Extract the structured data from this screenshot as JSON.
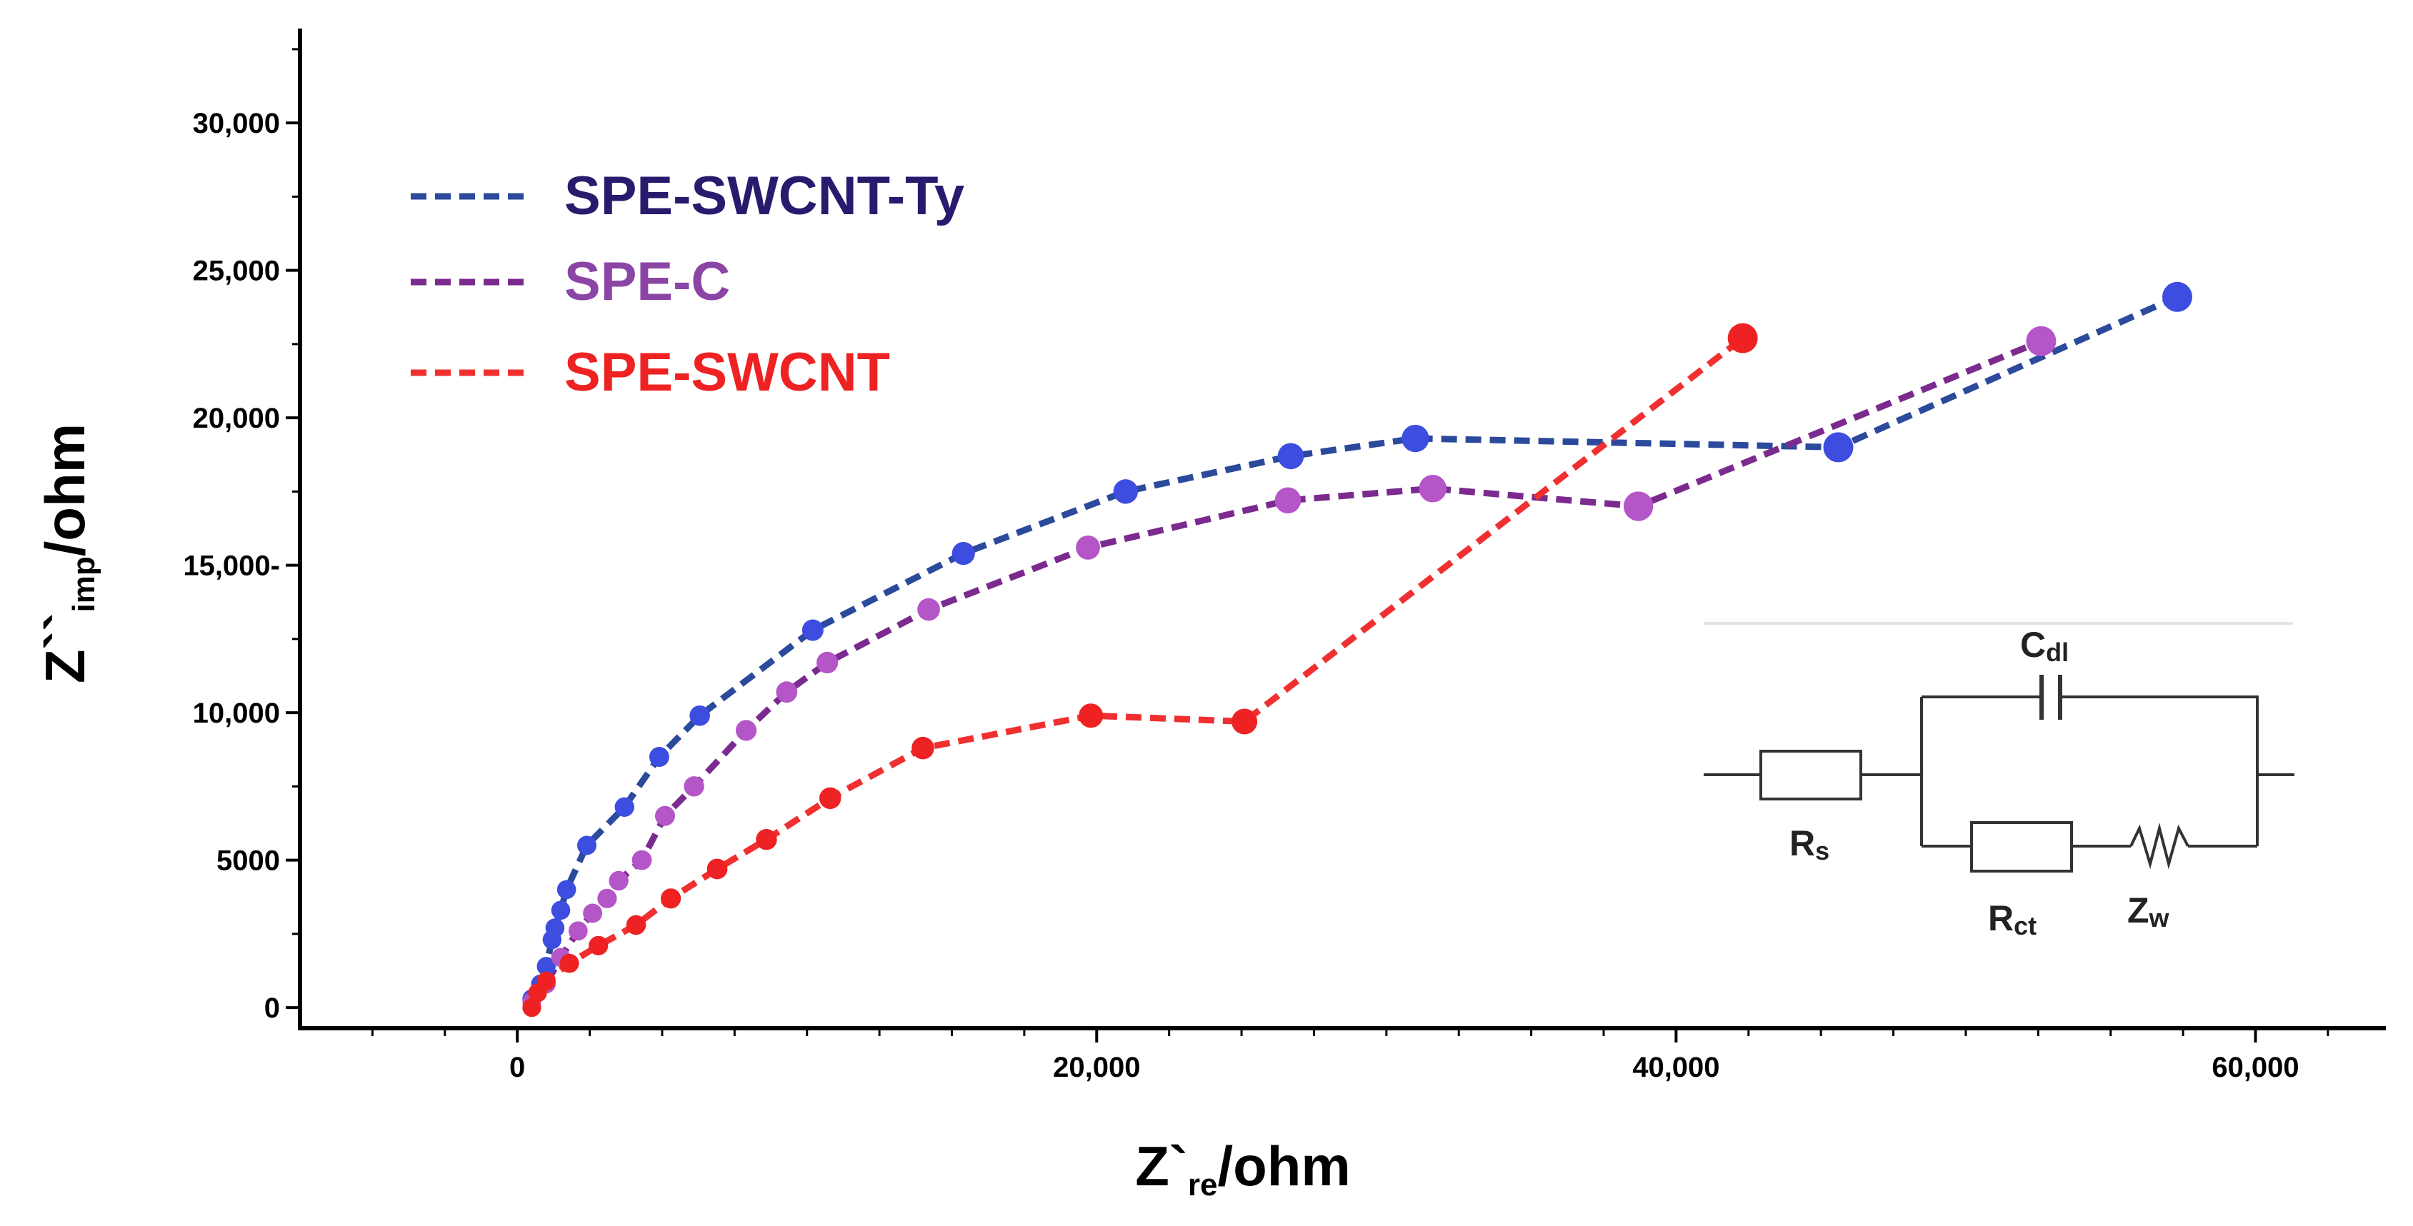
{
  "chart_data": {
    "type": "scatter",
    "title": "",
    "xlabel": {
      "main": "Z`",
      "sub": "re",
      "unit": "/ohm"
    },
    "ylabel": {
      "main": "Z``",
      "sub": "imp",
      "unit": "/ohm"
    },
    "xlim": [
      -7500,
      64500
    ],
    "ylim": [
      -700,
      33200
    ],
    "x_ticks": [
      {
        "value": 0,
        "label": "0"
      },
      {
        "value": 20000,
        "label": "20,000"
      },
      {
        "value": 40000,
        "label": "40,000"
      },
      {
        "value": 60000,
        "label": "60,000"
      }
    ],
    "y_ticks": [
      {
        "value": 0,
        "label": "0"
      },
      {
        "value": 5000,
        "label": "5000"
      },
      {
        "value": 10000,
        "label": "10,000"
      },
      {
        "value": 15000,
        "label": "15,000-"
      },
      {
        "value": 20000,
        "label": "20,000"
      },
      {
        "value": 25000,
        "label": "25,000"
      },
      {
        "value": 30000,
        "label": "30,000"
      }
    ],
    "legend_position": "top-left",
    "series": [
      {
        "name": "SPE-SWCNT-Ty",
        "line_color": "#2b4a9c",
        "marker_color": "#3d4de0",
        "text_color": "#2a1a6e",
        "x": [
          500,
          800,
          1000,
          1200,
          1300,
          1500,
          1700,
          2400,
          3700,
          4900,
          6300,
          10200,
          15400,
          21000,
          26700,
          31000,
          45600,
          57300
        ],
        "y": [
          300,
          800,
          1400,
          2300,
          2700,
          3300,
          4000,
          5500,
          6800,
          8500,
          9900,
          12800,
          15400,
          17500,
          18700,
          19300,
          19000,
          24100
        ]
      },
      {
        "name": "SPE-C",
        "line_color": "#7b2a8e",
        "marker_color": "#b455c8",
        "text_color": "#8b45a5",
        "x": [
          500,
          1000,
          1500,
          2100,
          2600,
          3100,
          3500,
          4300,
          5100,
          6100,
          7900,
          9300,
          10700,
          14200,
          19700,
          26600,
          31600,
          38700,
          52600
        ],
        "y": [
          200,
          800,
          1700,
          2600,
          3200,
          3700,
          4300,
          5000,
          6500,
          7500,
          9400,
          10700,
          11700,
          13500,
          15600,
          17200,
          17600,
          17000,
          22600
        ]
      },
      {
        "name": "SPE-SWCNT",
        "line_color": "#f03030",
        "marker_color": "#ee2222",
        "text_color": "#ee2222",
        "x": [
          500,
          700,
          1000,
          1800,
          2800,
          4100,
          5300,
          6900,
          8600,
          10800,
          14000,
          19800,
          25100,
          42300
        ],
        "y": [
          0,
          500,
          900,
          1500,
          2100,
          2800,
          3700,
          4700,
          5700,
          7100,
          8800,
          9900,
          9700,
          22700
        ]
      }
    ]
  },
  "circuit": {
    "labels": {
      "rs": {
        "main": "R",
        "sub": "s"
      },
      "cdl": {
        "main": "C",
        "sub": "dl"
      },
      "rct": {
        "main": "R",
        "sub": "ct"
      },
      "zw": {
        "main": "Z",
        "sub": "w"
      }
    }
  }
}
